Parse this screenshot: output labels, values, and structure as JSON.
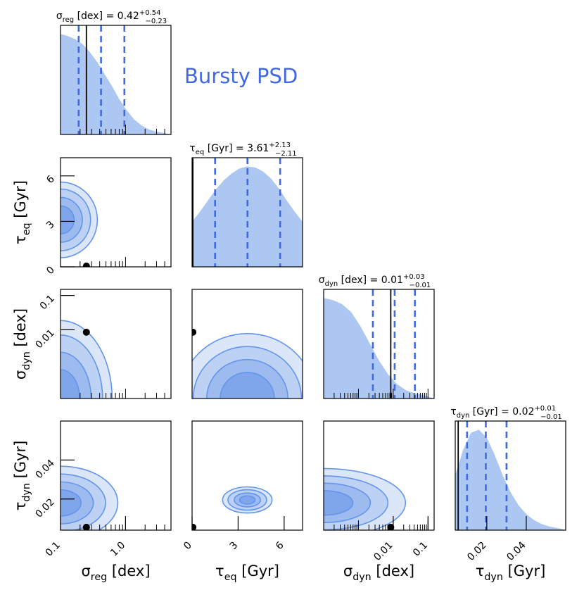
{
  "chart_data": {
    "type": "corner",
    "title": "Bursty PSD",
    "colors": {
      "accent": "#4169e1",
      "fill": "#a8c4f0",
      "levels": [
        "#dbe6f8",
        "#bdd1f4",
        "#9dbbef",
        "#7fa5ea"
      ],
      "contour_line": "#6495ed",
      "truth": "#000000"
    },
    "parameters": [
      {
        "id": "sigma_reg",
        "sym": "σ",
        "sub": "reg",
        "unit": "[dex]",
        "value": "0.42",
        "plus": "+0.54",
        "minus": "−0.23",
        "ticks": [
          "0.1",
          "1.0"
        ],
        "scale": "log",
        "range": [
          0.1,
          5.0
        ],
        "median": 0.42,
        "lo": 0.19,
        "hi": 0.96,
        "truth": 0.25
      },
      {
        "id": "tau_eq",
        "sym": "τ",
        "sub": "eq",
        "unit": "[Gyr]",
        "value": "3.61",
        "plus": "+2.13",
        "minus": "−2.11",
        "ticks": [
          "0",
          "3",
          "6"
        ],
        "scale": "linear",
        "range": [
          0,
          7.2
        ],
        "median": 3.61,
        "lo": 1.5,
        "hi": 5.74,
        "truth": 0.05
      },
      {
        "id": "sigma_dyn",
        "sym": "σ",
        "sub": "dyn",
        "unit": "[dex]",
        "value": "0.01",
        "plus": "+0.03",
        "minus": "−0.01",
        "ticks": [
          "0.01",
          "0.1"
        ],
        "scale": "log",
        "range": [
          0.0001,
          0.15
        ],
        "median": 0.011,
        "lo": 0.0026,
        "hi": 0.042,
        "truth": 0.0085
      },
      {
        "id": "tau_dyn",
        "sym": "τ",
        "sub": "dyn",
        "unit": "[Gyr]",
        "value": "0.02",
        "plus": "+0.01",
        "minus": "−0.01",
        "ticks": [
          "0.02",
          "0.04"
        ],
        "scale": "linear",
        "range": [
          0.004,
          0.06
        ],
        "median": 0.0195,
        "lo": 0.01,
        "hi": 0.03,
        "truth": 0.0055
      }
    ],
    "marginals": [
      {
        "param": 0,
        "density": [
          1.0,
          0.98,
          0.95,
          0.9,
          0.82,
          0.72,
          0.6,
          0.48,
          0.35,
          0.24,
          0.15,
          0.09,
          0.05,
          0.03,
          0.015,
          0.0
        ]
      },
      {
        "param": 1,
        "density": [
          0.45,
          0.55,
          0.66,
          0.77,
          0.86,
          0.93,
          0.98,
          1.0,
          0.99,
          0.95,
          0.88,
          0.78,
          0.66,
          0.55,
          0.45
        ]
      },
      {
        "param": 2,
        "density": [
          1.0,
          0.98,
          0.94,
          0.86,
          0.72,
          0.55,
          0.38,
          0.24,
          0.14,
          0.08,
          0.05,
          0.03,
          0.0
        ]
      },
      {
        "param": 3,
        "density": [
          0.55,
          0.8,
          0.97,
          1.0,
          0.92,
          0.75,
          0.55,
          0.38,
          0.25,
          0.16,
          0.1,
          0.06,
          0.035,
          0.02,
          0.0
        ]
      }
    ],
    "pairs": [
      {
        "x": 0,
        "y": 1,
        "center": [
          0.1,
          3.1
        ],
        "widths": [
          0.5,
          2.2
        ],
        "scales": [
          1.0,
          1.6,
          2.2,
          2.7
        ],
        "x_floor": true
      },
      {
        "x": 0,
        "y": 2,
        "center": [
          0.1,
          0.0001
        ],
        "widths": [
          0.7,
          2.0
        ],
        "scales": [
          1.0,
          1.6,
          2.2,
          2.7
        ],
        "x_floor": true
      },
      {
        "x": 1,
        "y": 2,
        "center": [
          3.6,
          0.0001
        ],
        "widths": [
          4.2,
          1.8
        ],
        "scales": [
          1.0,
          1.5,
          2.0,
          2.5
        ]
      },
      {
        "x": 0,
        "y": 3,
        "center": [
          0.1,
          0.018
        ],
        "widths": [
          0.75,
          0.016
        ],
        "scales": [
          1.0,
          1.6,
          2.2,
          2.8
        ],
        "x_floor": true
      },
      {
        "x": 1,
        "y": 3,
        "center": [
          3.6,
          0.0195
        ],
        "widths": [
          1.2,
          0.005
        ],
        "scales": [
          1.0,
          1.7,
          2.5,
          3.2
        ]
      },
      {
        "x": 2,
        "y": 3,
        "center": [
          0.0001,
          0.018
        ],
        "widths": [
          2.0,
          0.015
        ],
        "scales": [
          1.0,
          1.6,
          2.2,
          2.8
        ]
      }
    ]
  }
}
